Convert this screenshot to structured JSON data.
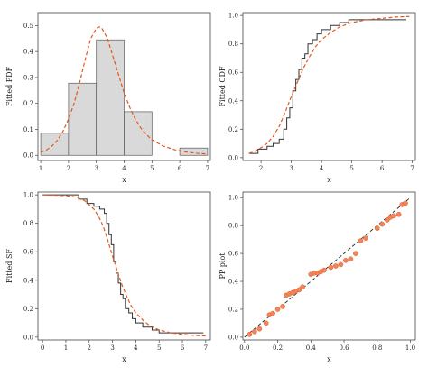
{
  "colors": {
    "hist_fill": "#d9d9d9",
    "hist_edge": "#5a5a5a",
    "empirical": "#333333",
    "fitted": "#e05a1e",
    "pp_point": "#f2845a",
    "pp_point_edge": "#d9622e",
    "reference_line": "#222222"
  },
  "chart_data": [
    {
      "type": "bar",
      "name": "fitted-pdf",
      "xlabel": "x",
      "ylabel": "Fitted PDF",
      "xlim": [
        0.9,
        7.1
      ],
      "ylim": [
        -0.02,
        0.55
      ],
      "xticks": [
        "1",
        "2",
        "3",
        "4",
        "5",
        "6",
        "7"
      ],
      "yticks": [
        "0.0",
        "0.1",
        "0.2",
        "0.3",
        "0.4",
        "0.5"
      ],
      "grid": false,
      "legend": "none",
      "bins": [
        {
          "from": 1,
          "to": 2,
          "density": 0.085
        },
        {
          "from": 2,
          "to": 3,
          "density": 0.278
        },
        {
          "from": 3,
          "to": 4,
          "density": 0.445
        },
        {
          "from": 4,
          "to": 5,
          "density": 0.168
        },
        {
          "from": 5,
          "to": 6,
          "density": 0.0
        },
        {
          "from": 6,
          "to": 7,
          "density": 0.028
        }
      ],
      "fitted_curve": {
        "style": "dashed",
        "x": [
          1.0,
          1.2,
          1.4,
          1.6,
          1.8,
          2.0,
          2.2,
          2.4,
          2.6,
          2.8,
          3.0,
          3.1,
          3.2,
          3.4,
          3.6,
          3.8,
          4.0,
          4.2,
          4.4,
          4.6,
          4.8,
          5.0,
          5.4,
          5.8,
          6.2,
          6.6,
          7.0
        ],
        "y": [
          0.012,
          0.02,
          0.035,
          0.058,
          0.092,
          0.14,
          0.2,
          0.28,
          0.37,
          0.45,
          0.49,
          0.495,
          0.49,
          0.45,
          0.38,
          0.31,
          0.24,
          0.185,
          0.14,
          0.105,
          0.08,
          0.06,
          0.036,
          0.022,
          0.013,
          0.008,
          0.005
        ]
      }
    },
    {
      "type": "line",
      "name": "fitted-cdf",
      "xlabel": "x",
      "ylabel": "Fitted CDF",
      "xlim": [
        1.4,
        7.1
      ],
      "ylim": [
        -0.02,
        1.02
      ],
      "xticks": [
        "2",
        "3",
        "4",
        "5",
        "6",
        "7"
      ],
      "yticks": [
        "0.0",
        "0.2",
        "0.4",
        "0.6",
        "0.8",
        "1.0"
      ],
      "grid": false,
      "legend": "none",
      "series": [
        {
          "kind": "empirical-step",
          "x": [
            1.6,
            1.9,
            2.2,
            2.4,
            2.6,
            2.75,
            2.85,
            2.95,
            3.05,
            3.15,
            3.25,
            3.35,
            3.45,
            3.55,
            3.7,
            3.85,
            4.0,
            4.3,
            4.6,
            4.9,
            6.8
          ],
          "y": [
            0.03,
            0.06,
            0.08,
            0.1,
            0.13,
            0.2,
            0.28,
            0.35,
            0.47,
            0.55,
            0.62,
            0.7,
            0.73,
            0.8,
            0.83,
            0.87,
            0.9,
            0.93,
            0.95,
            0.97,
            0.97
          ]
        },
        {
          "kind": "fitted",
          "style": "dashed",
          "x": [
            1.6,
            1.8,
            2.0,
            2.2,
            2.4,
            2.6,
            2.8,
            3.0,
            3.2,
            3.4,
            3.6,
            3.8,
            4.0,
            4.3,
            4.6,
            5.0,
            5.5,
            6.0,
            6.5,
            6.9
          ],
          "y": [
            0.03,
            0.045,
            0.07,
            0.1,
            0.15,
            0.22,
            0.32,
            0.43,
            0.53,
            0.63,
            0.71,
            0.78,
            0.83,
            0.88,
            0.92,
            0.95,
            0.97,
            0.98,
            0.99,
            0.993
          ]
        }
      ]
    },
    {
      "type": "line",
      "name": "fitted-sf",
      "xlabel": "x",
      "ylabel": "Fitted SF",
      "xlim": [
        -0.2,
        7.2
      ],
      "ylim": [
        -0.02,
        1.02
      ],
      "xticks": [
        "0",
        "1",
        "2",
        "3",
        "4",
        "5",
        "6",
        "7"
      ],
      "yticks": [
        "0.0",
        "0.2",
        "0.4",
        "0.6",
        "0.8",
        "1.0"
      ],
      "grid": false,
      "legend": "none",
      "series": [
        {
          "kind": "empirical-step",
          "x": [
            0.0,
            1.55,
            1.9,
            2.2,
            2.45,
            2.65,
            2.75,
            2.85,
            2.95,
            3.05,
            3.15,
            3.25,
            3.35,
            3.45,
            3.55,
            3.7,
            3.85,
            4.0,
            4.3,
            4.7,
            5.0,
            6.9
          ],
          "y": [
            1.0,
            0.97,
            0.94,
            0.92,
            0.9,
            0.87,
            0.8,
            0.72,
            0.65,
            0.53,
            0.45,
            0.38,
            0.3,
            0.27,
            0.2,
            0.17,
            0.13,
            0.1,
            0.07,
            0.05,
            0.03,
            0.03
          ]
        },
        {
          "kind": "fitted",
          "style": "dashed",
          "x": [
            0.0,
            1.0,
            1.4,
            1.8,
            2.0,
            2.2,
            2.4,
            2.6,
            2.8,
            3.0,
            3.2,
            3.4,
            3.6,
            3.8,
            4.0,
            4.3,
            4.6,
            5.0,
            5.5,
            6.0,
            6.5,
            7.0
          ],
          "y": [
            1.0,
            0.995,
            0.985,
            0.96,
            0.93,
            0.9,
            0.85,
            0.78,
            0.68,
            0.57,
            0.47,
            0.37,
            0.29,
            0.22,
            0.17,
            0.12,
            0.08,
            0.05,
            0.03,
            0.02,
            0.012,
            0.008
          ]
        }
      ]
    },
    {
      "type": "scatter",
      "name": "pp-plot",
      "xlabel": "x",
      "ylabel": "PP plot",
      "xlim": [
        -0.01,
        1.03
      ],
      "ylim": [
        -0.02,
        1.04
      ],
      "xticks": [
        "0.0",
        "0.2",
        "0.4",
        "0.6",
        "0.8",
        "1.0"
      ],
      "yticks": [
        "0.0",
        "0.2",
        "0.4",
        "0.6",
        "0.8",
        "1.0"
      ],
      "grid": false,
      "legend": "none",
      "reference_line": {
        "style": "dashed",
        "from": [
          0,
          0
        ],
        "to": [
          1,
          1
        ]
      },
      "points": {
        "x": [
          0.03,
          0.06,
          0.09,
          0.13,
          0.15,
          0.17,
          0.2,
          0.23,
          0.25,
          0.27,
          0.29,
          0.31,
          0.33,
          0.35,
          0.4,
          0.42,
          0.44,
          0.46,
          0.48,
          0.52,
          0.55,
          0.58,
          0.61,
          0.64,
          0.67,
          0.7,
          0.73,
          0.8,
          0.83,
          0.86,
          0.88,
          0.9,
          0.93,
          0.95,
          0.97
        ],
        "y": [
          0.02,
          0.04,
          0.06,
          0.1,
          0.16,
          0.17,
          0.2,
          0.22,
          0.3,
          0.31,
          0.32,
          0.33,
          0.34,
          0.36,
          0.45,
          0.46,
          0.46,
          0.47,
          0.48,
          0.5,
          0.51,
          0.52,
          0.55,
          0.56,
          0.6,
          0.69,
          0.71,
          0.78,
          0.81,
          0.84,
          0.86,
          0.87,
          0.88,
          0.95,
          0.96
        ]
      }
    }
  ]
}
